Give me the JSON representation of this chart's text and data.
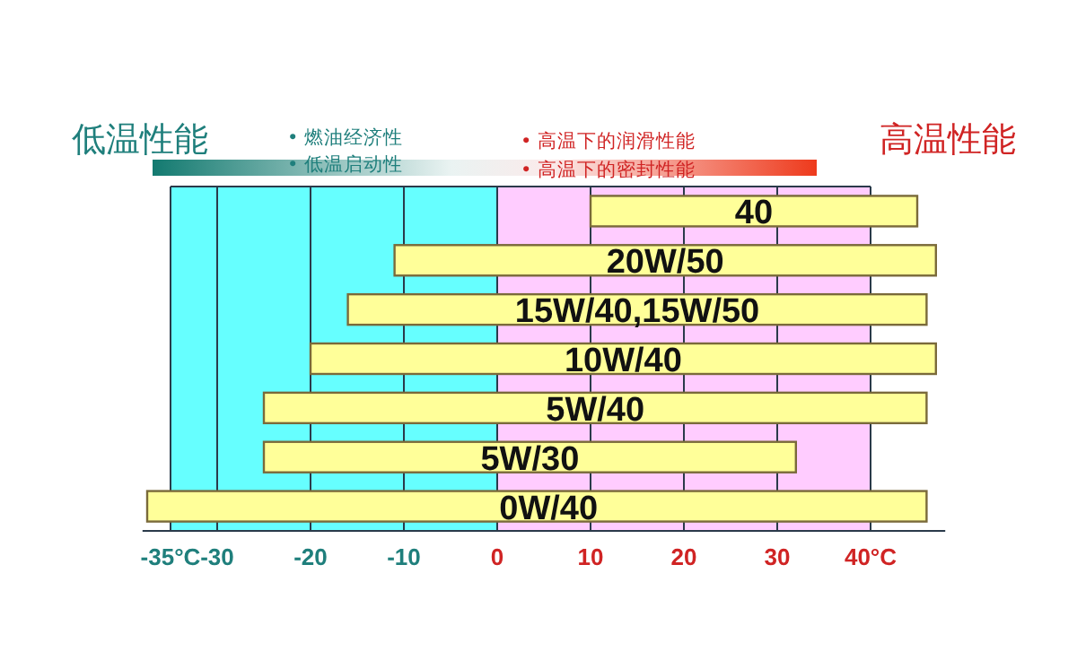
{
  "chart_data": {
    "type": "bar",
    "orientation": "horizontal",
    "categories": [
      "40",
      "20W/50",
      "15W/40,15W/50",
      "10W/40",
      "5W/40",
      "5W/30",
      "0W/40"
    ],
    "base": [
      10,
      -11,
      -16,
      -20,
      -25,
      -25,
      -37.5
    ],
    "values": [
      35,
      58,
      62,
      67,
      71,
      57,
      83.5
    ],
    "color": "#ffff99",
    "xlim": [
      -38,
      48
    ],
    "xticks": [
      {
        "value": -35,
        "label": "-35°C"
      },
      -30,
      -20,
      -10,
      0,
      10,
      20,
      30,
      {
        "value": 40,
        "label": "40°C"
      }
    ],
    "grid": "x",
    "tick_labels": "x",
    "bands": [
      {
        "axis": "x",
        "from": -35,
        "to": 0,
        "color": "#66ffff"
      },
      {
        "axis": "x",
        "from": 0,
        "to": 40,
        "color": "#ffccff"
      }
    ],
    "annotations": [
      "低温性能",
      "• 燃油经济性",
      "• 低温启动性",
      "• 高温下的润滑性能",
      "• 高温下的密封性能",
      "高温性能"
    ]
  }
}
